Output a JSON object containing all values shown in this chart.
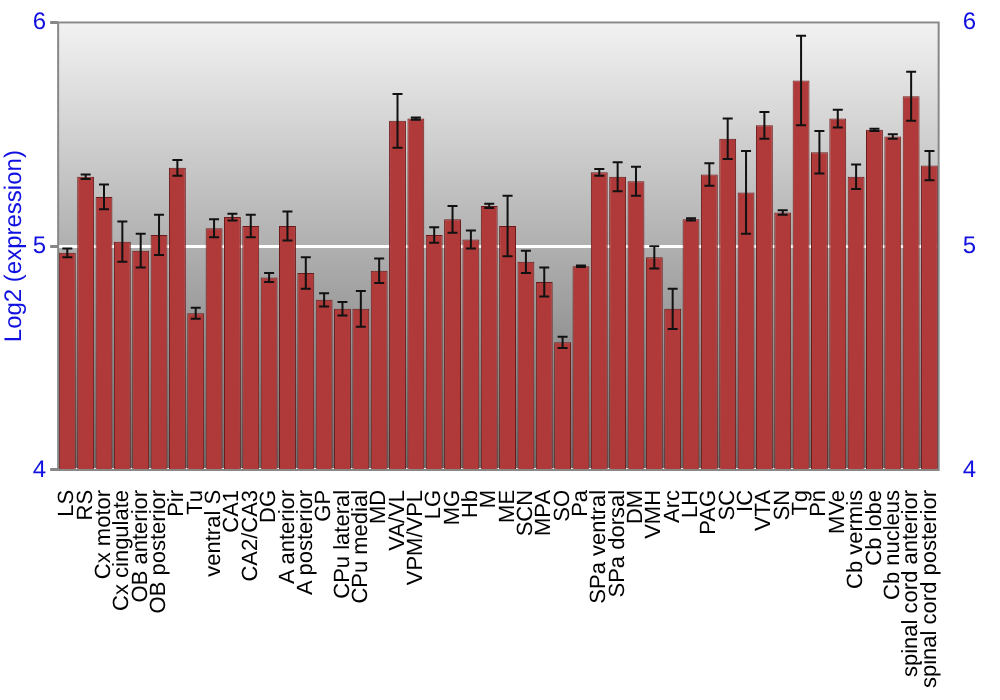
{
  "chart_data": {
    "type": "bar",
    "ylabel": "Log2 (expression)",
    "categories": [
      "LS",
      "RS",
      "Cx motor",
      "Cx cingulate",
      "OB anterior",
      "OB posterior",
      "Pir",
      "Tu",
      "ventral S",
      "CA1",
      "CA2/CA3",
      "DG",
      "A anterior",
      "A posterior",
      "GP",
      "CPu lateral",
      "CPu medial",
      "MD",
      "VA/VL",
      "VPM/VPL",
      "LG",
      "MG",
      "Hb",
      "M",
      "ME",
      "SCN",
      "MPA",
      "SO",
      "Pa",
      "SPa ventral",
      "SPa dorsal",
      "DM",
      "VMH",
      "Arc",
      "LH",
      "PAG",
      "SC",
      "IC",
      "VTA",
      "SN",
      "Tg",
      "Pn",
      "MVe",
      "Cb vermis",
      "Cb lobe",
      "Cb nucleus",
      "spinal cord anterior",
      "spinal cord posterior"
    ],
    "values": [
      4.97,
      5.31,
      5.22,
      5.02,
      4.98,
      5.05,
      5.35,
      4.7,
      5.08,
      5.13,
      5.09,
      4.86,
      5.09,
      4.88,
      4.76,
      4.72,
      4.72,
      4.89,
      5.56,
      5.57,
      5.05,
      5.12,
      5.03,
      5.18,
      5.09,
      4.93,
      4.84,
      4.57,
      4.91,
      5.33,
      5.31,
      5.29,
      4.95,
      4.72,
      5.12,
      5.32,
      5.48,
      5.24,
      5.54,
      5.15,
      5.74,
      5.42,
      5.57,
      5.31,
      5.52,
      5.49,
      5.67,
      5.36
    ],
    "errors": [
      0.02,
      0.01,
      0.055,
      0.09,
      0.075,
      0.09,
      0.035,
      0.025,
      0.04,
      0.015,
      0.05,
      0.02,
      0.065,
      0.07,
      0.03,
      0.03,
      0.08,
      0.055,
      0.12,
      0.005,
      0.035,
      0.06,
      0.04,
      0.01,
      0.135,
      0.05,
      0.065,
      0.025,
      0.003,
      0.015,
      0.065,
      0.065,
      0.05,
      0.09,
      0.005,
      0.05,
      0.09,
      0.185,
      0.06,
      0.01,
      0.2,
      0.095,
      0.04,
      0.055,
      0.005,
      0.01,
      0.11,
      0.065
    ],
    "color": "#b03a3a",
    "ylim": [
      4,
      6
    ],
    "yticks": [
      4,
      5,
      6
    ],
    "y2lim": [
      4,
      6
    ],
    "y2ticks": [
      4,
      5,
      6
    ],
    "grid": "y"
  }
}
